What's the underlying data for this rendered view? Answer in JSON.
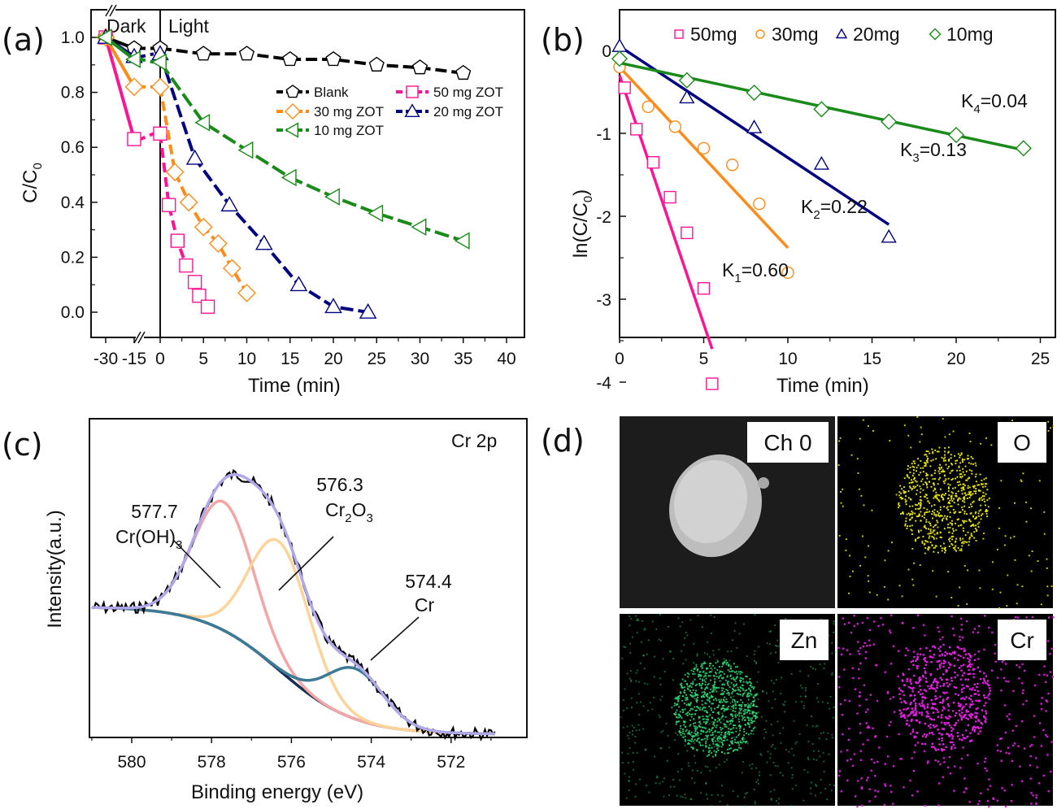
{
  "chart_data": [
    {
      "panel": "(a)",
      "type": "line",
      "xlabel": "Time (min)",
      "ylabel": "C/C0",
      "ylim": [
        -0.1,
        1.1
      ],
      "yticks": [
        "0.0",
        "0.2",
        "0.4",
        "0.6",
        "0.8",
        "1.0"
      ],
      "xticks": [
        "-30",
        "-15",
        "0",
        "5",
        "10",
        "15",
        "20",
        "25",
        "30",
        "35",
        "40"
      ],
      "axis_break": "between -15 and 0",
      "region_labels": [
        "Dark",
        "Light"
      ],
      "legend_position": "upper-right",
      "series": [
        {
          "name": "Blank",
          "marker": "pentagon",
          "color": "#000000",
          "x": [
            -30,
            -15,
            0,
            5,
            10,
            15,
            20,
            25,
            30,
            35
          ],
          "y": [
            1.0,
            0.96,
            0.96,
            0.94,
            0.94,
            0.92,
            0.92,
            0.9,
            0.89,
            0.87
          ]
        },
        {
          "name": "50 mg ZOT",
          "marker": "square",
          "color": "#ff1493",
          "x": [
            -30,
            -15,
            0,
            1,
            2,
            3,
            4,
            4.5,
            5.5
          ],
          "y": [
            1.0,
            0.63,
            0.65,
            0.39,
            0.26,
            0.17,
            0.11,
            0.06,
            0.02
          ]
        },
        {
          "name": "30 mg ZOT",
          "marker": "diamond",
          "color": "#ff8c1a",
          "x": [
            -30,
            -15,
            0,
            1.7,
            3.3,
            5,
            6.7,
            8.3,
            10
          ],
          "y": [
            1.0,
            0.82,
            0.82,
            0.51,
            0.4,
            0.31,
            0.25,
            0.16,
            0.07
          ]
        },
        {
          "name": "20 mg ZOT",
          "marker": "triangle-up",
          "color": "#000080",
          "x": [
            -30,
            -15,
            0,
            4,
            8,
            12,
            16,
            20,
            24
          ],
          "y": [
            1.0,
            0.93,
            0.94,
            0.56,
            0.39,
            0.25,
            0.1,
            0.02,
            0.0
          ]
        },
        {
          "name": "10 mg ZOT",
          "marker": "triangle-left",
          "color": "#1a8a1a",
          "x": [
            -30,
            -15,
            0,
            5,
            10,
            15,
            20,
            25,
            30,
            35
          ],
          "y": [
            1.0,
            0.92,
            0.91,
            0.69,
            0.59,
            0.49,
            0.42,
            0.36,
            0.31,
            0.26
          ]
        }
      ]
    },
    {
      "panel": "(b)",
      "type": "scatter",
      "xlabel": "Time (min)",
      "ylabel": "ln(C/C0)",
      "xlim": [
        0,
        26
      ],
      "ylim": [
        -4.5,
        0.5
      ],
      "xticks": [
        "0",
        "5",
        "10",
        "15",
        "20",
        "25"
      ],
      "yticks": [
        "0",
        "-1",
        "-2",
        "-3",
        "-4"
      ],
      "legend_position": "top",
      "series": [
        {
          "name": "50mg",
          "marker": "square",
          "color": "#ff1493",
          "x": [
            0.3,
            1,
            2,
            3,
            4,
            5,
            5.5
          ],
          "y": [
            -0.45,
            -0.95,
            -1.35,
            -1.77,
            -2.2,
            -2.87,
            -4.02
          ],
          "fit": {
            "x": [
              0,
              5.5
            ],
            "y": [
              -0.3,
              -3.6
            ]
          },
          "k_label": "K",
          "k_sub": "1",
          "k_value": "=0.60"
        },
        {
          "name": "30mg",
          "marker": "circle",
          "color": "#ff8c1a",
          "x": [
            0,
            1.7,
            3.3,
            5,
            6.7,
            8.3,
            10
          ],
          "y": [
            -0.2,
            -0.68,
            -0.92,
            -1.18,
            -1.38,
            -1.85,
            -2.68
          ],
          "fit": {
            "x": [
              0,
              10
            ],
            "y": [
              -0.2,
              -2.38
            ]
          },
          "k_label": "K",
          "k_sub": "2",
          "k_value": "=0.22"
        },
        {
          "name": "20mg",
          "marker": "triangle-up",
          "color": "#000080",
          "x": [
            0,
            4,
            8,
            12,
            16
          ],
          "y": [
            0.05,
            -0.57,
            -0.93,
            -1.37,
            -2.25
          ],
          "fit": {
            "x": [
              0,
              16
            ],
            "y": [
              0.05,
              -2.1
            ]
          },
          "k_label": "K",
          "k_sub": "3",
          "k_value": "=0.13"
        },
        {
          "name": "10mg",
          "marker": "diamond",
          "color": "#1a8a1a",
          "x": [
            0,
            4,
            8,
            12,
            16,
            20,
            24
          ],
          "y": [
            -0.1,
            -0.36,
            -0.51,
            -0.71,
            -0.86,
            -1.02,
            -1.18
          ],
          "fit": {
            "x": [
              0,
              24
            ],
            "y": [
              -0.15,
              -1.2
            ]
          },
          "k_label": "K",
          "k_sub": "4",
          "k_value": "=0.04"
        }
      ]
    },
    {
      "panel": "(c)",
      "type": "line",
      "title": "Cr 2p",
      "xlabel": "Binding energy (eV)",
      "ylabel": "Intensity(a.u.)",
      "xlim": [
        581,
        570.5
      ],
      "xticks": [
        "580",
        "578",
        "576",
        "574",
        "572"
      ],
      "annotations": [
        {
          "value": "577.7",
          "species": "Cr(OH)",
          "sub": "3"
        },
        {
          "value": "576.3",
          "species": "Cr",
          "sub": "2",
          "species2": "O",
          "sub2": "3"
        },
        {
          "value": "574.4",
          "species": "Cr"
        }
      ],
      "peaks": [
        {
          "name": "Cr(OH)3",
          "center": 577.7,
          "color": "#f4a6a6"
        },
        {
          "name": "Cr2O3",
          "center": 576.3,
          "color": "#fcd49a"
        },
        {
          "name": "Cr",
          "center": 574.4,
          "color": "#3d7a95"
        }
      ],
      "envelope_color": "#b0a8e8",
      "background_color": "#1a2f50",
      "raw_color": "#000000"
    }
  ],
  "labels": {
    "a": "(a)",
    "b": "(b)",
    "c": "(c)",
    "d": "(d)"
  },
  "eds_maps": {
    "tiles": [
      {
        "label": "Ch 0",
        "kind": "sem",
        "color": "#d8d8d8"
      },
      {
        "label": "O",
        "kind": "dots",
        "color": "#e6e600"
      },
      {
        "label": "Zn",
        "kind": "dots",
        "color": "#2ee07a"
      },
      {
        "label": "Cr",
        "kind": "dots",
        "color": "#e020e0"
      }
    ]
  }
}
